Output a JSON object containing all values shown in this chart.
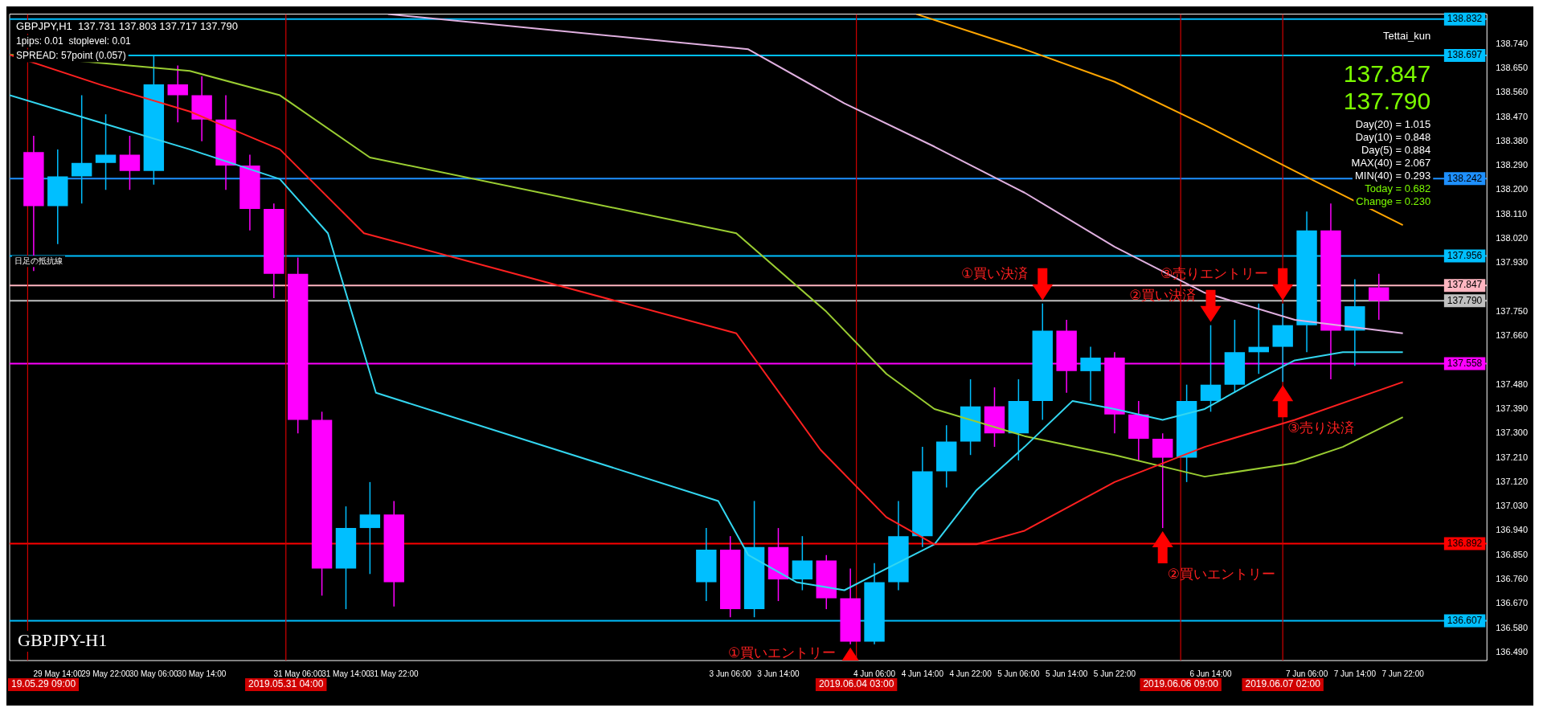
{
  "chart_data": {
    "type": "candlestick",
    "x": [
      "2019-05-29T10:00",
      "2019-05-29T14:00",
      "2019-05-29T18:00",
      "2019-05-29T22:00",
      "2019-05-30T02:00",
      "2019-05-30T06:00",
      "2019-05-30T10:00",
      "2019-05-30T14:00",
      "2019-05-30T18:00",
      "2019-05-30T22:00",
      "2019-05-31T02:00",
      "2019-05-31T06:00",
      "2019-05-31T10:00",
      "2019-05-31T14:00",
      "2019-05-31T18:00",
      "2019-05-31T22:00",
      "2019-06-03T02:00",
      "2019-06-03T06:00",
      "2019-06-03T10:00",
      "2019-06-03T14:00",
      "2019-06-03T18:00",
      "2019-06-03T22:00",
      "2019-06-04T02:00",
      "2019-06-04T06:00",
      "2019-06-04T10:00",
      "2019-06-04T14:00",
      "2019-06-04T18:00",
      "2019-06-04T22:00",
      "2019-06-05T02:00",
      "2019-06-05T06:00",
      "2019-06-05T10:00",
      "2019-06-05T14:00",
      "2019-06-05T18:00",
      "2019-06-05T22:00",
      "2019-06-06T02:00",
      "2019-06-06T06:00",
      "2019-06-06T10:00",
      "2019-06-06T14:00",
      "2019-06-06T18:00",
      "2019-06-06T22:00",
      "2019-06-07T02:00",
      "2019-06-07T06:00",
      "2019-06-07T10:00",
      "2019-06-07T14:00",
      "2019-06-07T18:00"
    ],
    "ohlc": [
      [
        138.34,
        138.4,
        137.9,
        138.14
      ],
      [
        138.14,
        138.35,
        138.0,
        138.25
      ],
      [
        138.25,
        138.55,
        138.15,
        138.3
      ],
      [
        138.3,
        138.48,
        138.2,
        138.33
      ],
      [
        138.33,
        138.4,
        138.2,
        138.27
      ],
      [
        138.27,
        138.7,
        138.22,
        138.59
      ],
      [
        138.59,
        138.66,
        138.45,
        138.55
      ],
      [
        138.55,
        138.62,
        138.38,
        138.46
      ],
      [
        138.46,
        138.55,
        138.2,
        138.29
      ],
      [
        138.29,
        138.33,
        138.05,
        138.13
      ],
      [
        138.13,
        138.15,
        137.8,
        137.89
      ],
      [
        137.89,
        137.95,
        137.3,
        137.35
      ],
      [
        137.35,
        137.38,
        136.7,
        136.8
      ],
      [
        136.8,
        137.03,
        136.65,
        136.95
      ],
      [
        136.95,
        137.12,
        136.78,
        137.0
      ],
      [
        137.0,
        137.05,
        136.66,
        136.75
      ],
      [
        136.75,
        136.95,
        136.68,
        136.87
      ],
      [
        136.87,
        136.92,
        136.62,
        136.65
      ],
      [
        136.65,
        137.05,
        136.62,
        136.88
      ],
      [
        136.88,
        136.95,
        136.68,
        136.76
      ],
      [
        136.76,
        136.92,
        136.72,
        136.83
      ],
      [
        136.83,
        136.85,
        136.65,
        136.69
      ],
      [
        136.69,
        136.8,
        136.52,
        136.53
      ],
      [
        136.53,
        136.82,
        136.52,
        136.75
      ],
      [
        136.75,
        137.05,
        136.72,
        136.92
      ],
      [
        136.92,
        137.25,
        136.88,
        137.16
      ],
      [
        137.16,
        137.33,
        137.1,
        137.27
      ],
      [
        137.27,
        137.5,
        137.22,
        137.4
      ],
      [
        137.4,
        137.47,
        137.25,
        137.3
      ],
      [
        137.3,
        137.5,
        137.2,
        137.42
      ],
      [
        137.42,
        137.78,
        137.35,
        137.68
      ],
      [
        137.68,
        137.72,
        137.45,
        137.53
      ],
      [
        137.53,
        137.62,
        137.42,
        137.58
      ],
      [
        137.58,
        137.6,
        137.3,
        137.37
      ],
      [
        137.37,
        137.42,
        137.2,
        137.28
      ],
      [
        137.28,
        137.3,
        136.95,
        137.21
      ],
      [
        137.21,
        137.48,
        137.12,
        137.42
      ],
      [
        137.42,
        137.7,
        137.38,
        137.48
      ],
      [
        137.48,
        137.72,
        137.45,
        137.6
      ],
      [
        137.6,
        137.78,
        137.52,
        137.62
      ],
      [
        137.62,
        137.78,
        137.49,
        137.7
      ],
      [
        137.7,
        138.12,
        137.6,
        138.05
      ],
      [
        138.05,
        138.15,
        137.5,
        137.68
      ],
      [
        137.68,
        137.87,
        137.55,
        137.77
      ],
      [
        137.84,
        137.89,
        137.72,
        137.79
      ]
    ],
    "colors": [
      "#ff00ff",
      "#00bfff",
      "#00bfff",
      "#00bfff",
      "#ff00ff",
      "#00bfff",
      "#ff00ff",
      "#ff00ff",
      "#ff00ff",
      "#ff00ff",
      "#ff00ff",
      "#ff00ff",
      "#ff00ff",
      "#00bfff",
      "#00bfff",
      "#ff00ff",
      "#00bfff",
      "#ff00ff",
      "#00bfff",
      "#ff00ff",
      "#00bfff",
      "#ff00ff",
      "#ff00ff",
      "#00bfff",
      "#00bfff",
      "#00bfff",
      "#00bfff",
      "#00bfff",
      "#ff00ff",
      "#00bfff",
      "#00bfff",
      "#ff00ff",
      "#00bfff",
      "#ff00ff",
      "#ff00ff",
      "#ff00ff",
      "#00bfff",
      "#00bfff",
      "#00bfff",
      "#00bfff",
      "#00bfff",
      "#00bfff",
      "#ff00ff",
      "#00bfff",
      "#ff00ff"
    ],
    "series": [
      {
        "type": "line",
        "color": "#ff2020",
        "x": [
          "2019-05-29T06:00",
          "2019-05-29T21:00",
          "2019-05-30T12:00",
          "2019-05-31T03:00",
          "2019-05-31T17:00",
          "2019-06-03T07:00",
          "2019-06-03T21:00",
          "2019-06-04T08:00",
          "2019-06-04T16:00",
          "2019-06-04T23:00",
          "2019-06-05T07:00",
          "2019-06-05T22:00",
          "2019-06-06T13:00",
          "2019-06-07T04:00",
          "2019-06-07T22:00"
        ],
        "values": [
          138.7,
          138.59,
          138.49,
          138.35,
          138.04,
          137.67,
          137.24,
          136.99,
          136.89,
          136.89,
          136.94,
          137.12,
          137.25,
          137.35,
          137.49
        ]
      },
      {
        "type": "line",
        "color": "#33d6f0",
        "x": [
          "2019-05-29T06:00",
          "2019-05-29T21:00",
          "2019-05-30T12:00",
          "2019-05-31T03:00",
          "2019-05-31T11:00",
          "2019-05-31T19:00",
          "2019-06-03T04:00",
          "2019-06-03T09:00",
          "2019-06-03T17:00",
          "2019-06-04T01:00",
          "2019-06-04T08:00",
          "2019-06-04T16:00",
          "2019-06-04T23:00",
          "2019-06-05T07:00",
          "2019-06-05T15:00",
          "2019-06-05T22:00",
          "2019-06-06T06:00",
          "2019-06-06T13:00",
          "2019-06-06T21:00",
          "2019-06-07T04:00",
          "2019-06-07T12:00",
          "2019-06-07T22:00"
        ],
        "values": [
          138.55,
          138.45,
          138.35,
          138.24,
          138.04,
          137.45,
          137.05,
          136.85,
          136.75,
          136.72,
          136.8,
          136.89,
          137.09,
          137.25,
          137.42,
          137.39,
          137.35,
          137.39,
          137.49,
          137.57,
          137.6,
          137.6
        ]
      },
      {
        "type": "line",
        "color": "#9acd32",
        "x": [
          "2019-05-29T06:00",
          "2019-05-29T21:00",
          "2019-05-30T12:00",
          "2019-05-31T03:00",
          "2019-05-31T18:00",
          "2019-06-03T07:00",
          "2019-06-03T22:00",
          "2019-06-04T08:00",
          "2019-06-04T16:00",
          "2019-06-05T07:00",
          "2019-06-05T22:00",
          "2019-06-06T13:00",
          "2019-06-07T04:00",
          "2019-06-07T12:00",
          "2019-06-07T22:00"
        ],
        "values": [
          138.7,
          138.67,
          138.64,
          138.55,
          138.32,
          138.04,
          137.75,
          137.52,
          137.39,
          137.29,
          137.22,
          137.14,
          137.19,
          137.25,
          137.36
        ]
      },
      {
        "type": "line",
        "color": "#ffa500",
        "x": [
          "2019-06-04T13:00",
          "2019-06-05T07:00",
          "2019-06-05T22:00",
          "2019-06-06T13:00",
          "2019-06-07T04:00",
          "2019-06-07T22:00"
        ],
        "values": [
          138.85,
          138.72,
          138.6,
          138.44,
          138.27,
          138.07
        ]
      },
      {
        "type": "line",
        "color": "#e0b0e0",
        "x": [
          "2019-05-31T21:00",
          "2019-06-03T09:00",
          "2019-06-04T01:00",
          "2019-06-04T16:00",
          "2019-06-05T07:00",
          "2019-06-05T22:00",
          "2019-06-06T13:00",
          "2019-06-07T04:00",
          "2019-06-07T22:00"
        ],
        "values": [
          138.85,
          138.72,
          138.52,
          138.36,
          138.19,
          137.99,
          137.82,
          137.72,
          137.67
        ]
      }
    ],
    "xlim": [
      "2019-05-29T06:00",
      "2019-06-08T12:00"
    ],
    "xticks": [
      {
        "value": "2019-05-29T14:00",
        "label": "29 May 14:00"
      },
      {
        "value": "2019-05-29T22:00",
        "label": "29 May 22:00"
      },
      {
        "value": "2019-05-30T06:00",
        "label": "30 May 06:00"
      },
      {
        "value": "2019-05-30T14:00",
        "label": "30 May 14:00"
      },
      {
        "value": "2019-05-31T06:00",
        "label": "31 May 06:00"
      },
      {
        "value": "2019-05-31T14:00",
        "label": "31 May 14:00"
      },
      {
        "value": "2019-05-31T22:00",
        "label": "31 May 22:00"
      },
      {
        "value": "2019-06-03T06:00",
        "label": "3 Jun 06:00"
      },
      {
        "value": "2019-06-03T14:00",
        "label": "3 Jun 14:00"
      },
      {
        "value": "2019-06-04T06:00",
        "label": "4 Jun 06:00"
      },
      {
        "value": "2019-06-04T14:00",
        "label": "4 Jun 14:00"
      },
      {
        "value": "2019-06-04T22:00",
        "label": "4 Jun 22:00"
      },
      {
        "value": "2019-06-05T06:00",
        "label": "5 Jun 06:00"
      },
      {
        "value": "2019-06-05T14:00",
        "label": "5 Jun 14:00"
      },
      {
        "value": "2019-06-05T22:00",
        "label": "5 Jun 22:00"
      },
      {
        "value": "2019-06-06T14:00",
        "label": "6 Jun 14:00"
      },
      {
        "value": "2019-06-07T06:00",
        "label": "7 Jun 06:00"
      },
      {
        "value": "2019-06-07T14:00",
        "label": "7 Jun 14:00"
      },
      {
        "value": "2019-06-07T22:00",
        "label": "7 Jun 22:00"
      }
    ],
    "ylim": [
      136.46,
      138.85
    ],
    "yticks": [
      {
        "value": 138.74,
        "label": "138.740"
      },
      {
        "value": 138.65,
        "label": "138.650"
      },
      {
        "value": 138.56,
        "label": "138.560"
      },
      {
        "value": 138.47,
        "label": "138.470"
      },
      {
        "value": 138.38,
        "label": "138.380"
      },
      {
        "value": 138.29,
        "label": "138.290"
      },
      {
        "value": 138.2,
        "label": "138.200"
      },
      {
        "value": 138.11,
        "label": "138.110"
      },
      {
        "value": 138.02,
        "label": "138.020"
      },
      {
        "value": 137.93,
        "label": "137.930"
      },
      {
        "value": 137.75,
        "label": "137.750"
      },
      {
        "value": 137.66,
        "label": "137.660"
      },
      {
        "value": 137.48,
        "label": "137.480"
      },
      {
        "value": 137.39,
        "label": "137.390"
      },
      {
        "value": 137.3,
        "label": "137.300"
      },
      {
        "value": 137.21,
        "label": "137.210"
      },
      {
        "value": 137.12,
        "label": "137.120"
      },
      {
        "value": 137.03,
        "label": "137.030"
      },
      {
        "value": 136.94,
        "label": "136.940"
      },
      {
        "value": 136.85,
        "label": "136.850"
      },
      {
        "value": 136.76,
        "label": "136.760"
      },
      {
        "value": 136.67,
        "label": "136.670"
      },
      {
        "value": 136.58,
        "label": "136.580"
      },
      {
        "value": 136.49,
        "label": "136.490"
      }
    ],
    "ref_lines": [
      {
        "axis": "y",
        "value": 138.832,
        "label": "138.832",
        "color": "#00bfff"
      },
      {
        "axis": "y",
        "value": 138.697,
        "label": "138.697",
        "color": "#00bfff"
      },
      {
        "axis": "y",
        "value": 138.242,
        "label": "138.242",
        "color": "#1e90ff"
      },
      {
        "axis": "y",
        "value": 137.956,
        "label": "137.956",
        "color": "#00bfff"
      },
      {
        "axis": "y",
        "value": 137.847,
        "label": "137.847",
        "color": "#ffb6c1"
      },
      {
        "axis": "y",
        "value": 137.79,
        "label": "137.790",
        "color": "#c0c0c0"
      },
      {
        "axis": "y",
        "value": 137.558,
        "label": "137.558",
        "color": "#ff00ff"
      },
      {
        "axis": "y",
        "value": 136.892,
        "label": "136.892",
        "color": "#ff0000"
      },
      {
        "axis": "y",
        "value": 136.607,
        "label": "136.607",
        "color": "#00bfff"
      },
      {
        "axis": "x",
        "value": "2019-05-29T09:00",
        "label": "19.05.29 09:00",
        "color": "#d00000"
      },
      {
        "axis": "x",
        "value": "2019-05-31T04:00",
        "label": "2019.05.31 04:00",
        "color": "#d00000"
      },
      {
        "axis": "x",
        "value": "2019-06-04T03:00",
        "label": "2019.06.04 03:00",
        "color": "#d00000"
      },
      {
        "axis": "x",
        "value": "2019-06-06T09:00",
        "label": "2019.06.06 09:00",
        "color": "#d00000"
      },
      {
        "axis": "x",
        "value": "2019-06-07T02:00",
        "label": "2019.06.07 02:00",
        "color": "#d00000"
      }
    ],
    "annotations": [
      "GBPJPY,H1  137.731 137.803 137.717 137.790",
      "1pips: 0.01  stoplevel: 0.01",
      "SPREAD: 57point (0.057)",
      "日足の抵抗線",
      "GBPJPY-H1",
      "Tettai_kun",
      "137.847",
      "137.790",
      "Day(20) = 1.015",
      "Day(10) = 0.848",
      "Day(5) = 0.884",
      "MAX(40) = 2.067",
      "MIN(40) = 0.293",
      "Today = 0.682",
      "Change = 0.230",
      {
        "text": "①買い決済",
        "x": "2019-06-05T10:00",
        "y": 137.78
      },
      {
        "text": "②買い決済",
        "x": "2019-06-06T14:00",
        "y": 137.7
      },
      {
        "text": "③売りエントリー",
        "x": "2019-06-07T02:00",
        "y": 137.78
      },
      {
        "text": "①買いエントリー",
        "x": "2019-06-04T02:00",
        "y": 136.52
      },
      {
        "text": "②買いエントリー",
        "x": "2019-06-06T06:00",
        "y": 136.95
      },
      {
        "text": "③売り決済",
        "x": "2019-06-07T02:00",
        "y": 137.49
      }
    ],
    "grid": false,
    "legend": false
  }
}
